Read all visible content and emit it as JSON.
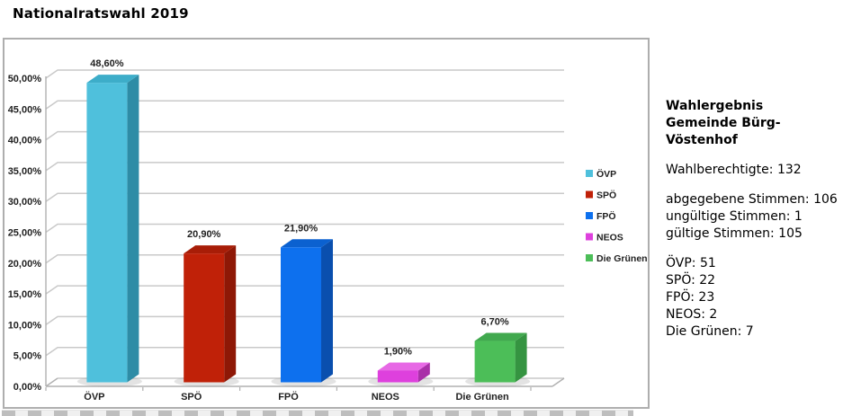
{
  "page": {
    "title": "Nationalratswahl 2019"
  },
  "chart_data": {
    "type": "bar",
    "style": "3d-column",
    "title": "",
    "categories": [
      "ÖVP",
      "SPÖ",
      "FPÖ",
      "NEOS",
      "Die Grünen"
    ],
    "values": [
      48.6,
      20.9,
      21.9,
      1.9,
      6.7
    ],
    "value_labels": [
      "48,60%",
      "20,90%",
      "21,90%",
      "1,90%",
      "6,70%"
    ],
    "ylabel": "",
    "xlabel": "",
    "ylim": [
      0,
      50
    ],
    "y_step": 5,
    "y_tick_labels": [
      "0,00%",
      "5,00%",
      "10,00%",
      "15,00%",
      "20,00%",
      "25,00%",
      "30,00%",
      "35,00%",
      "40,00%",
      "45,00%",
      "50,00%"
    ],
    "grid": true,
    "legend_position": "right",
    "legend": [
      "ÖVP",
      "SPÖ",
      "FPÖ",
      "NEOS",
      "Die Grünen"
    ],
    "series_colors": [
      {
        "front": "#4FC0DC",
        "top": "#3DADC9",
        "side": "#2E8CA6"
      },
      {
        "front": "#C02108",
        "top": "#A81D07",
        "side": "#8E1806"
      },
      {
        "front": "#0D70EE",
        "top": "#0B61D0",
        "side": "#0A4FAE"
      },
      {
        "front": "#DE40DD",
        "top": "#E768E5",
        "side": "#A930A8"
      },
      {
        "front": "#4CBE58",
        "top": "#41A94E",
        "side": "#359441"
      }
    ],
    "grid_color": "#c9c9c9",
    "axis_color": "#b0b0b0",
    "label_color": "#1f1f1f"
  },
  "info_panel": {
    "heading": "Wahlergebnis\nGemeinde Bürg-\nVöstenhof",
    "groups": [
      [
        "Wahlberechtigte: 132"
      ],
      [
        "abgegebene Stimmen: 106",
        "ungültige Stimmen: 1",
        "gültige Stimmen: 105"
      ],
      [
        "ÖVP: 51",
        "SPÖ: 22",
        "FPÖ: 23",
        "NEOS: 2",
        "Die Grünen: 7"
      ]
    ]
  }
}
